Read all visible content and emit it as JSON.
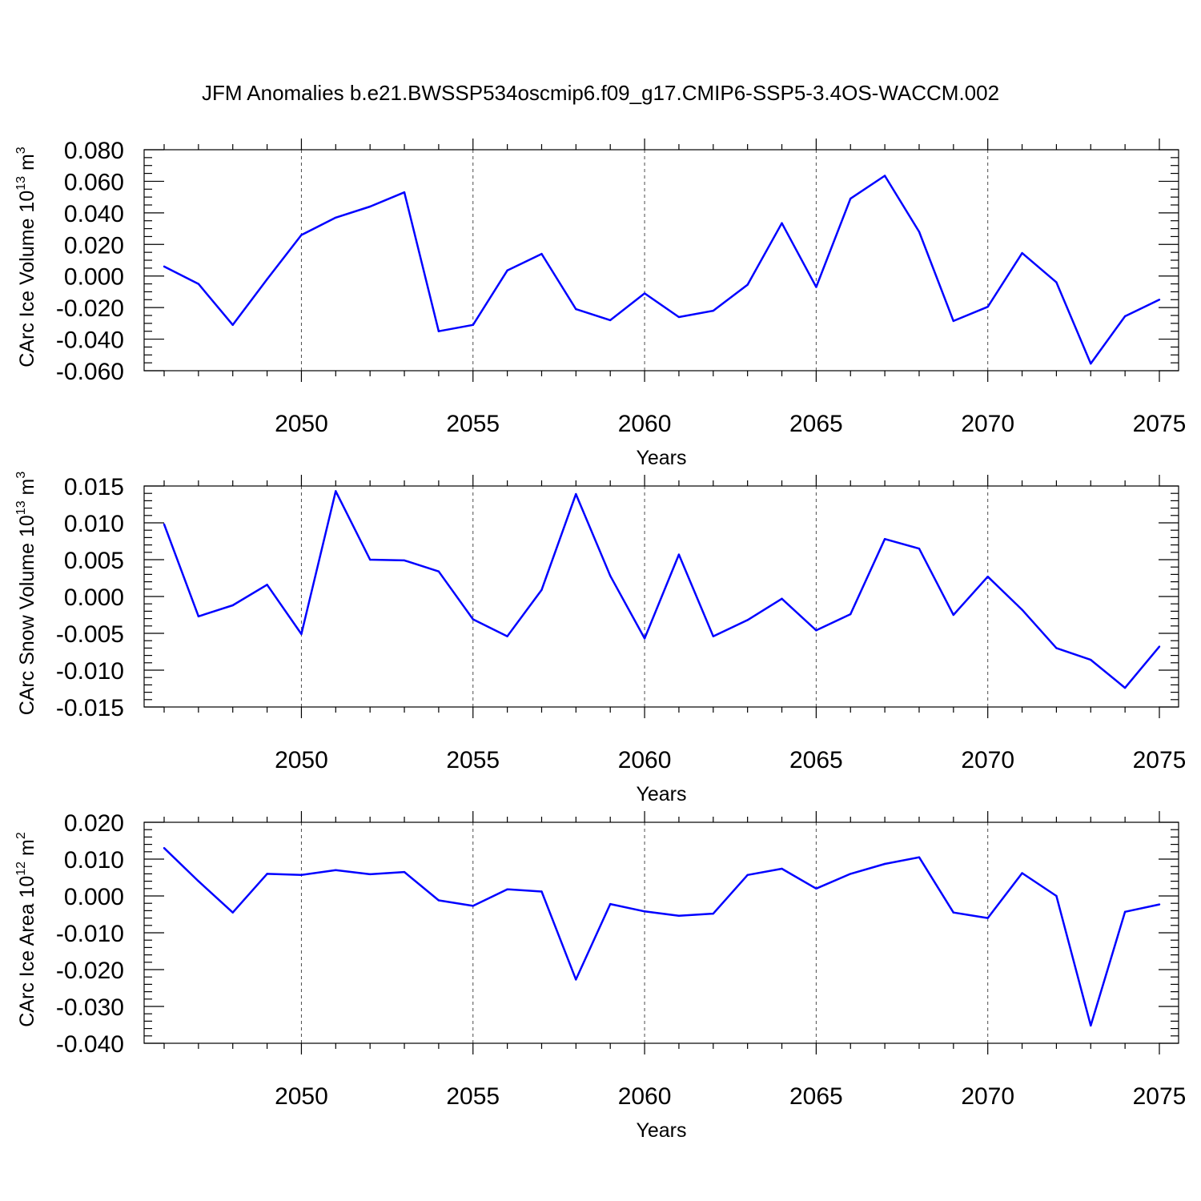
{
  "figure_title": "JFM Anomalies b.e21.BWSSP534oscmip6.f09_g17.CMIP6-SSP5-3.4OS-WACCM.002",
  "colors": {
    "line": "#0000ff",
    "axis": "#000000",
    "background": "#ffffff"
  },
  "chart_data": [
    {
      "type": "line",
      "title": "JFM Anomalies b.e21.BWSSP534oscmip6.f09_g17.CMIP6-SSP5-3.4OS-WACCM.002",
      "ylabel_main": "CArc Ice Volume 10",
      "ylabel_exp": "13",
      "ylabel_unit": " m",
      "ylabel_unit_exp": "3",
      "xlabel": "Years",
      "xlim": [
        2046,
        2075
      ],
      "ylim": [
        -0.06,
        0.08
      ],
      "yticks": [
        -0.06,
        -0.04,
        -0.02,
        0.0,
        0.02,
        0.04,
        0.06,
        0.08
      ],
      "ytick_labels": [
        "-0.060",
        "-0.040",
        "-0.020",
        "0.000",
        "0.020",
        "0.040",
        "0.060",
        "0.080"
      ],
      "yminor_step": 0.005,
      "xticks": [
        2050,
        2055,
        2060,
        2065,
        2070,
        2075
      ],
      "xtick_labels": [
        "2050",
        "2055",
        "2060",
        "2065",
        "2070",
        "2075"
      ],
      "grid": "vertical-dashed-at-major-x",
      "x": [
        2046,
        2047,
        2048,
        2049,
        2050,
        2051,
        2052,
        2053,
        2054,
        2055,
        2056,
        2057,
        2058,
        2059,
        2060,
        2061,
        2062,
        2063,
        2064,
        2065,
        2066,
        2067,
        2068,
        2069,
        2070,
        2071,
        2072,
        2073,
        2074,
        2075
      ],
      "values": [
        0.006,
        -0.005,
        -0.031,
        -0.002,
        0.026,
        0.037,
        0.044,
        0.053,
        -0.035,
        -0.031,
        0.0035,
        0.014,
        -0.021,
        -0.028,
        -0.011,
        -0.026,
        -0.022,
        -0.0055,
        0.0335,
        -0.007,
        0.049,
        0.0635,
        0.028,
        -0.0285,
        -0.0195,
        0.0145,
        -0.004,
        -0.0555,
        -0.0255,
        -0.015
      ]
    },
    {
      "type": "line",
      "ylabel_main": "CArc Snow Volume 10",
      "ylabel_exp": "13",
      "ylabel_unit": " m",
      "ylabel_unit_exp": "3",
      "xlabel": "Years",
      "xlim": [
        2046,
        2075
      ],
      "ylim": [
        -0.015,
        0.015
      ],
      "yticks": [
        -0.015,
        -0.01,
        -0.005,
        0.0,
        0.005,
        0.01,
        0.015
      ],
      "ytick_labels": [
        "-0.015",
        "-0.010",
        "-0.005",
        "0.000",
        "0.005",
        "0.010",
        "0.015"
      ],
      "yminor_step": 0.001,
      "xticks": [
        2050,
        2055,
        2060,
        2065,
        2070,
        2075
      ],
      "xtick_labels": [
        "2050",
        "2055",
        "2060",
        "2065",
        "2070",
        "2075"
      ],
      "grid": "vertical-dashed-at-major-x",
      "x": [
        2046,
        2047,
        2048,
        2049,
        2050,
        2051,
        2052,
        2053,
        2054,
        2055,
        2056,
        2057,
        2058,
        2059,
        2060,
        2061,
        2062,
        2063,
        2064,
        2065,
        2066,
        2067,
        2068,
        2069,
        2070,
        2071,
        2072,
        2073,
        2074,
        2075
      ],
      "values": [
        0.0098,
        -0.0027,
        -0.0012,
        0.0016,
        -0.0051,
        0.0143,
        0.005,
        0.0049,
        0.0034,
        -0.0031,
        -0.0054,
        0.0009,
        0.0139,
        0.0028,
        -0.0057,
        0.0057,
        -0.0054,
        -0.0032,
        -0.0003,
        -0.0046,
        -0.0024,
        0.0078,
        0.0065,
        -0.0025,
        0.0027,
        -0.0018,
        -0.007,
        -0.0086,
        -0.0124,
        -0.0068
      ]
    },
    {
      "type": "line",
      "ylabel_main": "CArc Ice Area 10",
      "ylabel_exp": "12",
      "ylabel_unit": " m",
      "ylabel_unit_exp": "2",
      "xlabel": "Years",
      "xlim": [
        2046,
        2075
      ],
      "ylim": [
        -0.04,
        0.02
      ],
      "yticks": [
        -0.04,
        -0.03,
        -0.02,
        -0.01,
        0.0,
        0.01,
        0.02
      ],
      "ytick_labels": [
        "-0.040",
        "-0.030",
        "-0.020",
        "-0.010",
        "0.000",
        "0.010",
        "0.020"
      ],
      "yminor_step": 0.002,
      "xticks": [
        2050,
        2055,
        2060,
        2065,
        2070,
        2075
      ],
      "xtick_labels": [
        "2050",
        "2055",
        "2060",
        "2065",
        "2070",
        "2075"
      ],
      "grid": "vertical-dashed-at-major-x",
      "x": [
        2046,
        2047,
        2048,
        2049,
        2050,
        2051,
        2052,
        2053,
        2054,
        2055,
        2056,
        2057,
        2058,
        2059,
        2060,
        2061,
        2062,
        2063,
        2064,
        2065,
        2066,
        2067,
        2068,
        2069,
        2070,
        2071,
        2072,
        2073,
        2074,
        2075
      ],
      "values": [
        0.013,
        0.004,
        -0.0045,
        0.006,
        0.0057,
        0.007,
        0.0059,
        0.0065,
        -0.0012,
        -0.0027,
        0.0018,
        0.0012,
        -0.0227,
        -0.0022,
        -0.0042,
        -0.0054,
        -0.0048,
        0.0057,
        0.0074,
        0.002,
        0.006,
        0.0087,
        0.0105,
        -0.0045,
        -0.006,
        0.0062,
        0.0,
        -0.0352,
        -0.0043,
        -0.0023
      ]
    }
  ]
}
